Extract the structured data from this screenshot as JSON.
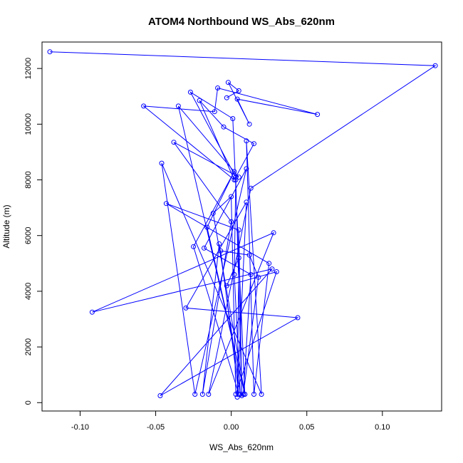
{
  "chart_data": {
    "type": "scatter",
    "title": "ATOM4 Northbound WS_Abs_620nm",
    "xlabel": "WS_Abs_620nm",
    "ylabel": "Altitude (m)",
    "xlim": [
      -0.1252,
      0.1392
    ],
    "ylim": [
      -300,
      12950
    ],
    "x_ticks": [
      -0.1,
      -0.05,
      0.0,
      0.05,
      0.1
    ],
    "x_tick_labels": [
      "-0.10",
      "-0.05",
      "0.00",
      "0.05",
      "0.10"
    ],
    "y_ticks": [
      0,
      2000,
      4000,
      6000,
      8000,
      10000,
      12000
    ],
    "y_tick_labels": [
      "0",
      "2000",
      "4000",
      "6000",
      "8000",
      "10000",
      "12000"
    ],
    "grid": false,
    "legend": "none",
    "color": "#0000ff",
    "series": [
      {
        "connected": true,
        "x": [
          -0.12,
          0.135,
          0.013,
          -0.015,
          0.028,
          -0.092,
          0.027,
          -0.047,
          0.044,
          -0.03,
          0.01,
          0.004,
          0.005,
          -0.003,
          0.03,
          0.003,
          0.0,
          -0.012,
          0.009,
          -0.016,
          0.002,
          -0.025,
          0.005,
          -0.007,
          0.012,
          0.018,
          0.008,
          0.013,
          -0.018,
          0.01,
          -0.024,
          -0.046,
          0.02,
          0.01,
          0.015,
          0.025,
          -0.043,
          0.005,
          0.007,
          0.003,
          0.002,
          0.006,
          -0.008,
          -0.019,
          0.0,
          -0.038,
          0.005,
          -0.035,
          0.009,
          0.001,
          -0.027,
          0.003,
          0.015,
          -0.005,
          -0.021,
          0.002,
          -0.058,
          -0.011,
          -0.009,
          0.057,
          0.004,
          0.012,
          -0.002,
          0.005,
          -0.003
        ],
        "y": [
          12600,
          12100,
          7700,
          300,
          6100,
          3250,
          4800,
          250,
          3050,
          3400,
          7200,
          200,
          5200,
          4200,
          4700,
          300,
          7400,
          6800,
          300,
          6300,
          8300,
          5600,
          300,
          5450,
          5300,
          4500,
          300,
          4600,
          5550,
          8400,
          300,
          8600,
          300,
          9400,
          300,
          5000,
          7150,
          6200,
          250,
          8000,
          4600,
          300,
          5700,
          300,
          6500,
          9350,
          8100,
          10650,
          300,
          10200,
          11150,
          8100,
          9300,
          9900,
          10850,
          8000,
          10650,
          10450,
          11300,
          10350,
          10900,
          10000,
          11500,
          11200,
          10950
        ]
      }
    ]
  }
}
